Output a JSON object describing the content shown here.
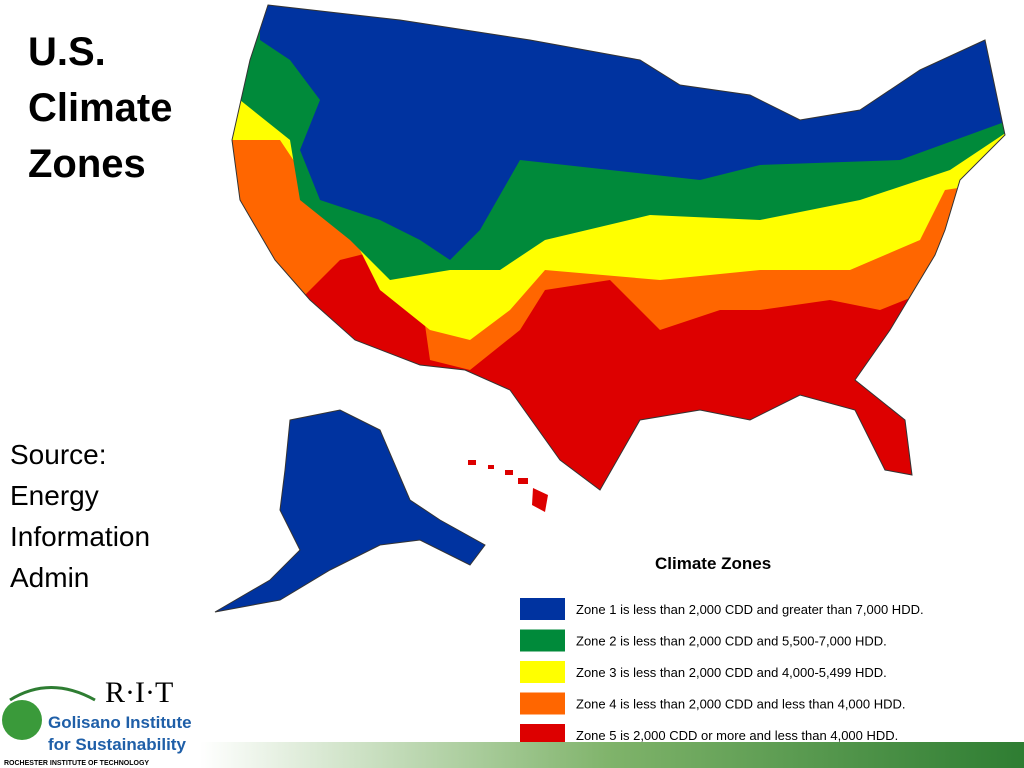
{
  "slide": {
    "title": "U.S. Climate Zones",
    "source": "Source: Energy Information Admin"
  },
  "legend": {
    "title": "Climate Zones",
    "items": [
      {
        "label": "Zone 1 is less than 2,000 CDD and greater than 7,000 HDD.",
        "color": "#0033a0"
      },
      {
        "label": "Zone 2 is less than 2,000 CDD and 5,500-7,000 HDD.",
        "color": "#008a3a"
      },
      {
        "label": "Zone 3 is less than 2,000 CDD and 4,000-5,499 HDD.",
        "color": "#ffff00"
      },
      {
        "label": "Zone 4 is less than 2,000 CDD and less than 4,000 HDD.",
        "color": "#ff6600"
      },
      {
        "label": "Zone 5 is 2,000 CDD or more and less than 4,000 HDD.",
        "color": "#dd0000"
      }
    ]
  },
  "logo": {
    "mark": "R·I·T",
    "name": "Golisano Institute for Sustainability",
    "school": "ROCHESTER INSTITUTE OF TECHNOLOGY"
  }
}
